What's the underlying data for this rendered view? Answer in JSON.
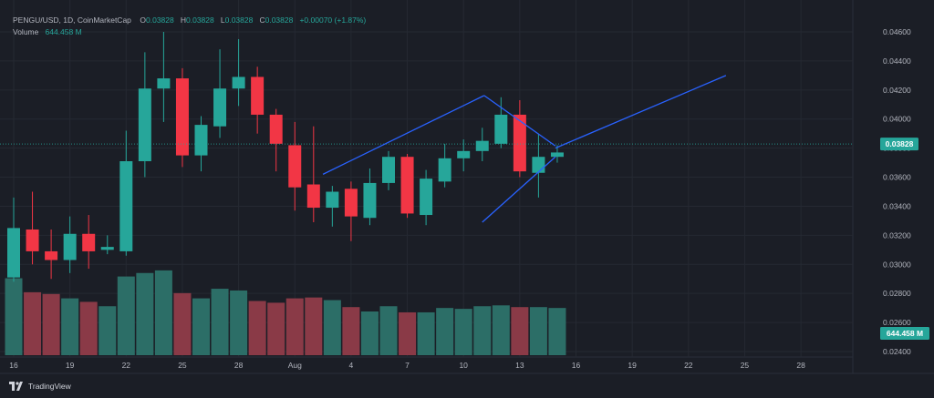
{
  "header": {
    "symbol_line": "PENGU/USD, 1D, CoinMarketCap",
    "ohlc": [
      {
        "key": "O",
        "value": "0.03828"
      },
      {
        "key": "H",
        "value": "0.03828"
      },
      {
        "key": "L",
        "value": "0.03828"
      },
      {
        "key": "C",
        "value": "0.03828"
      }
    ],
    "change": "+0.00070 (+1.87%)",
    "volume_label": "Volume",
    "volume_value": "644.458 M"
  },
  "badges": {
    "price": "0.03828",
    "volume": "644.458 M"
  },
  "footer": {
    "brand": "TradingView"
  },
  "colors": {
    "background": "#1b1e26",
    "up": "#26a69a",
    "down": "#f23645",
    "volume_up": "#2c6e67",
    "volume_down": "#8a3a47",
    "trendline": "#2962ff",
    "grid": "#252932",
    "axis_text": "#b2b5be"
  },
  "chart_data": {
    "type": "candlestick",
    "y_axis": {
      "ticks": [
        "0.04600",
        "0.04400",
        "0.04200",
        "0.04000",
        "0.03800",
        "0.03600",
        "0.03400",
        "0.03200",
        "0.03000",
        "0.02800",
        "0.02600",
        "0.02400"
      ],
      "tick_values": [
        0.046,
        0.044,
        0.042,
        0.04,
        0.038,
        0.036,
        0.034,
        0.032,
        0.03,
        0.028,
        0.026,
        0.024
      ],
      "range": [
        0.0237,
        0.0476
      ]
    },
    "x_axis": {
      "labels": [
        "16",
        "19",
        "22",
        "25",
        "28",
        "Aug",
        "4",
        "7",
        "10",
        "13",
        "16",
        "19",
        "22",
        "25",
        "28"
      ],
      "label_positions": [
        0,
        3,
        6,
        9,
        12,
        15,
        18,
        21,
        24,
        27,
        30,
        33,
        36,
        39,
        42
      ],
      "bar_range": [
        -1,
        44.5
      ]
    },
    "grid": true,
    "last_price": 0.03828,
    "candles": [
      {
        "o": 0.0291,
        "h": 0.0346,
        "l": 0.0288,
        "c": 0.0325
      },
      {
        "o": 0.0324,
        "h": 0.035,
        "l": 0.03,
        "c": 0.0309
      },
      {
        "o": 0.0309,
        "h": 0.0324,
        "l": 0.029,
        "c": 0.0303
      },
      {
        "o": 0.0303,
        "h": 0.0333,
        "l": 0.0294,
        "c": 0.0321
      },
      {
        "o": 0.0321,
        "h": 0.0334,
        "l": 0.0297,
        "c": 0.0309
      },
      {
        "o": 0.031,
        "h": 0.032,
        "l": 0.0307,
        "c": 0.0312
      },
      {
        "o": 0.0309,
        "h": 0.0392,
        "l": 0.0306,
        "c": 0.0371
      },
      {
        "o": 0.0371,
        "h": 0.0446,
        "l": 0.036,
        "c": 0.0421
      },
      {
        "o": 0.0421,
        "h": 0.046,
        "l": 0.0398,
        "c": 0.0428
      },
      {
        "o": 0.0428,
        "h": 0.0435,
        "l": 0.0367,
        "c": 0.0375
      },
      {
        "o": 0.0375,
        "h": 0.0402,
        "l": 0.0364,
        "c": 0.0396
      },
      {
        "o": 0.0395,
        "h": 0.0448,
        "l": 0.0387,
        "c": 0.0421
      },
      {
        "o": 0.0421,
        "h": 0.0455,
        "l": 0.0409,
        "c": 0.0429
      },
      {
        "o": 0.0429,
        "h": 0.0436,
        "l": 0.039,
        "c": 0.0403
      },
      {
        "o": 0.0403,
        "h": 0.0407,
        "l": 0.0364,
        "c": 0.0383
      },
      {
        "o": 0.0382,
        "h": 0.0398,
        "l": 0.0337,
        "c": 0.0353
      },
      {
        "o": 0.0355,
        "h": 0.0395,
        "l": 0.0329,
        "c": 0.0339
      },
      {
        "o": 0.0339,
        "h": 0.0354,
        "l": 0.0326,
        "c": 0.035
      },
      {
        "o": 0.0352,
        "h": 0.0357,
        "l": 0.0316,
        "c": 0.0333
      },
      {
        "o": 0.0332,
        "h": 0.0366,
        "l": 0.0327,
        "c": 0.0356
      },
      {
        "o": 0.0356,
        "h": 0.0378,
        "l": 0.0351,
        "c": 0.0374
      },
      {
        "o": 0.0374,
        "h": 0.0376,
        "l": 0.0332,
        "c": 0.0335
      },
      {
        "o": 0.0334,
        "h": 0.0365,
        "l": 0.0327,
        "c": 0.0359
      },
      {
        "o": 0.0357,
        "h": 0.0383,
        "l": 0.0353,
        "c": 0.0373
      },
      {
        "o": 0.0373,
        "h": 0.0386,
        "l": 0.0364,
        "c": 0.0378
      },
      {
        "o": 0.0378,
        "h": 0.0394,
        "l": 0.0371,
        "c": 0.0385
      },
      {
        "o": 0.0383,
        "h": 0.0415,
        "l": 0.038,
        "c": 0.0403
      },
      {
        "o": 0.0403,
        "h": 0.0413,
        "l": 0.036,
        "c": 0.0364
      },
      {
        "o": 0.0363,
        "h": 0.039,
        "l": 0.0346,
        "c": 0.0374
      },
      {
        "o": 0.0374,
        "h": 0.0382,
        "l": 0.037,
        "c": 0.0377
      }
    ],
    "volume": {
      "range": [
        0,
        100
      ],
      "values": [
        88,
        72,
        70,
        65,
        61,
        56,
        90,
        94,
        97,
        71,
        65,
        76,
        74,
        62,
        60,
        65,
        66,
        63,
        55,
        50,
        56,
        49,
        49,
        54,
        53,
        56,
        57,
        55,
        55,
        54
      ]
    },
    "trendlines": [
      {
        "from": {
          "bar": 16.5,
          "price": 0.0362
        },
        "to": {
          "bar": 25.1,
          "price": 0.04162
        }
      },
      {
        "from": {
          "bar": 25.1,
          "price": 0.04162
        },
        "to": {
          "bar": 28.9,
          "price": 0.03815
        }
      },
      {
        "from": {
          "bar": 25.0,
          "price": 0.0329
        },
        "to": {
          "bar": 28.9,
          "price": 0.0374
        }
      },
      {
        "from": {
          "bar": 28.9,
          "price": 0.038
        },
        "to": {
          "bar": 38.0,
          "price": 0.043
        }
      }
    ]
  }
}
